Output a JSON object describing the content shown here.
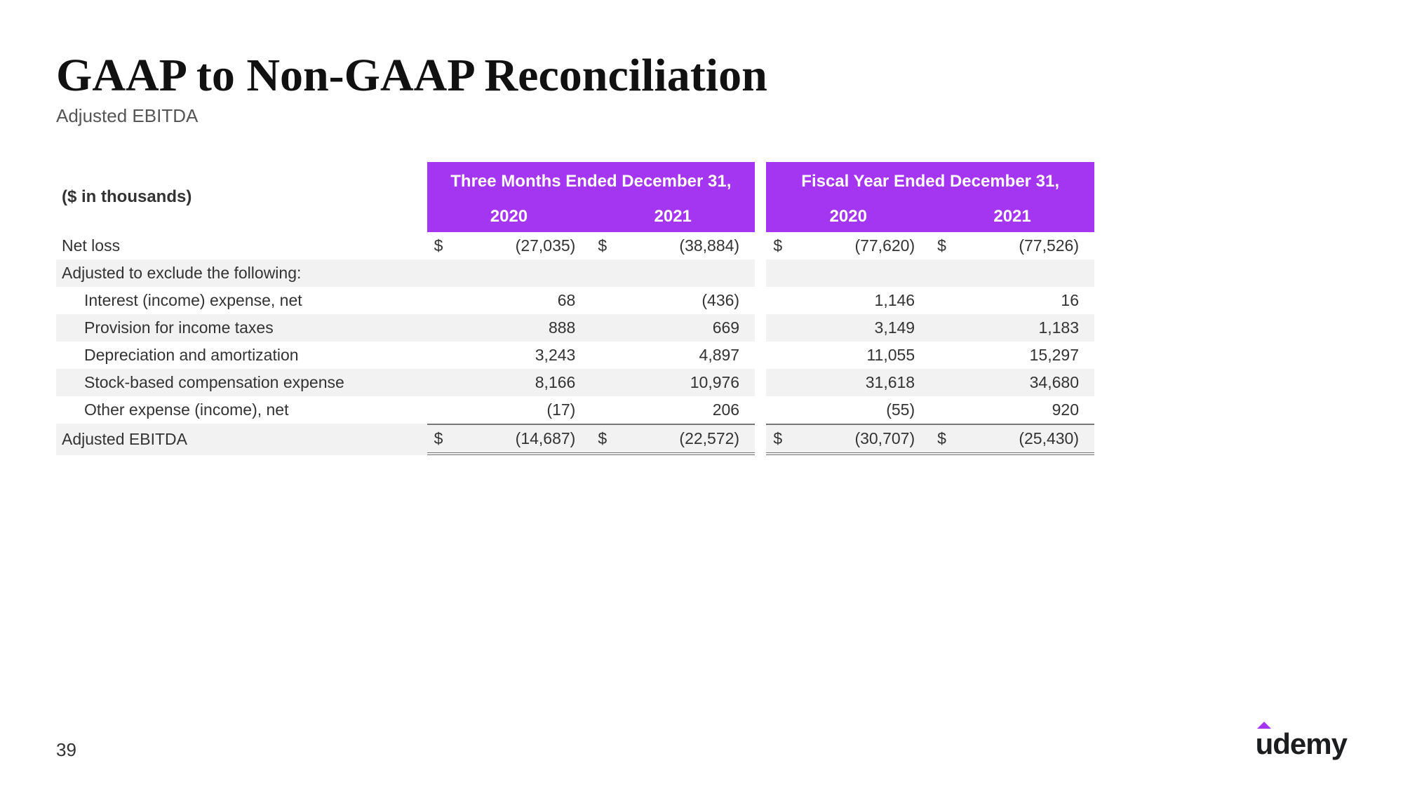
{
  "title": "GAAP to Non-GAAP Reconciliation",
  "subtitle": "Adjusted EBITDA",
  "page_number": "39",
  "logo_text": "demy",
  "table": {
    "unit_label": "($ in thousands)",
    "group_headers": [
      "Three Months Ended December 31,",
      "Fiscal Year Ended December 31,"
    ],
    "year_headers": [
      "2020",
      "2021",
      "2020",
      "2021"
    ],
    "header_bg": "#a435f0",
    "header_fg": "#ffffff",
    "shade_bg": "#f2f2f2",
    "rows": [
      {
        "label": "Net loss",
        "vals": [
          "(27,035)",
          "(38,884)",
          "(77,620)",
          "(77,526)"
        ],
        "sym": [
          "$",
          "$",
          "$",
          "$"
        ],
        "indent": false,
        "shade": false
      },
      {
        "label": "Adjusted to exclude the following:",
        "vals": [
          "",
          "",
          "",
          ""
        ],
        "sym": [
          "",
          "",
          "",
          ""
        ],
        "indent": false,
        "shade": true
      },
      {
        "label": "Interest (income) expense, net",
        "vals": [
          "68",
          "(436)",
          "1,146",
          "16"
        ],
        "sym": [
          "",
          "",
          "",
          ""
        ],
        "indent": true,
        "shade": false
      },
      {
        "label": "Provision for income taxes",
        "vals": [
          "888",
          "669",
          "3,149",
          "1,183"
        ],
        "sym": [
          "",
          "",
          "",
          ""
        ],
        "indent": true,
        "shade": true
      },
      {
        "label": "Depreciation and amortization",
        "vals": [
          "3,243",
          "4,897",
          "11,055",
          "15,297"
        ],
        "sym": [
          "",
          "",
          "",
          ""
        ],
        "indent": true,
        "shade": false
      },
      {
        "label": "Stock-based compensation expense",
        "vals": [
          "8,166",
          "10,976",
          "31,618",
          "34,680"
        ],
        "sym": [
          "",
          "",
          "",
          ""
        ],
        "indent": true,
        "shade": true
      },
      {
        "label": "Other expense (income), net",
        "vals": [
          "(17)",
          "206",
          "(55)",
          "920"
        ],
        "sym": [
          "",
          "",
          "",
          ""
        ],
        "indent": true,
        "shade": false
      }
    ],
    "total": {
      "label": "Adjusted EBITDA",
      "vals": [
        "(14,687)",
        "(22,572)",
        "(30,707)",
        "(25,430)"
      ],
      "sym": [
        "$",
        "$",
        "$",
        "$"
      ]
    }
  }
}
